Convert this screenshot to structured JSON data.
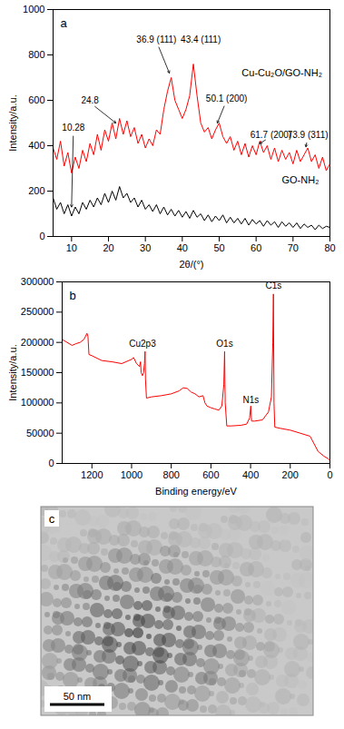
{
  "chart_data": [
    {
      "type": "line",
      "panel_label": "a",
      "x_label": "2θ/(°)",
      "y_label": "Intensity/a.u.",
      "x": [
        5,
        6,
        7,
        8,
        9,
        10,
        11,
        12,
        13,
        14,
        15,
        16,
        17,
        18,
        19,
        20,
        21,
        22,
        23,
        24,
        25,
        26,
        27,
        28,
        29,
        30,
        31,
        32,
        33,
        34,
        35,
        36,
        37,
        38,
        39,
        40,
        41,
        42,
        43,
        44,
        45,
        46,
        47,
        48,
        49,
        50,
        51,
        52,
        53,
        54,
        55,
        56,
        57,
        58,
        59,
        60,
        61,
        62,
        63,
        64,
        65,
        66,
        67,
        68,
        69,
        70,
        71,
        72,
        73,
        74,
        75,
        76,
        77,
        78,
        79,
        80
      ],
      "series": [
        {
          "name": "Cu-Cu₂O/GO-NH₂",
          "color": "#ff0000",
          "label_x": 67,
          "label_y": 720,
          "values": [
            390,
            340,
            420,
            310,
            370,
            280,
            350,
            300,
            380,
            330,
            410,
            360,
            450,
            380,
            470,
            420,
            500,
            430,
            520,
            450,
            510,
            440,
            480,
            410,
            450,
            390,
            430,
            400,
            470,
            450,
            560,
            640,
            700,
            600,
            560,
            520,
            560,
            620,
            760,
            620,
            500,
            460,
            480,
            430,
            470,
            500,
            440,
            410,
            440,
            380,
            420,
            360,
            410,
            350,
            400,
            360,
            420,
            370,
            400,
            340,
            390,
            330,
            380,
            340,
            370,
            320,
            380,
            330,
            360,
            390,
            330,
            360,
            300,
            350,
            290,
            320
          ]
        },
        {
          "name": "GO-NH₂",
          "color": "#000000",
          "label_x": 72,
          "label_y": 250,
          "values": [
            170,
            120,
            150,
            100,
            140,
            90,
            130,
            100,
            150,
            120,
            160,
            130,
            170,
            140,
            190,
            150,
            200,
            160,
            220,
            170,
            190,
            150,
            170,
            130,
            160,
            120,
            140,
            110,
            140,
            100,
            130,
            95,
            120,
            90,
            115,
            85,
            110,
            80,
            115,
            85,
            100,
            70,
            95,
            65,
            90,
            70,
            95,
            60,
            85,
            60,
            80,
            55,
            80,
            50,
            75,
            55,
            70,
            45,
            70,
            50,
            65,
            40,
            65,
            45,
            60,
            40,
            60,
            35,
            55,
            40,
            50,
            30,
            50,
            35,
            45,
            40
          ]
        }
      ],
      "xlim": [
        5,
        80
      ],
      "xticks": [
        10,
        20,
        30,
        40,
        50,
        60,
        70,
        80
      ],
      "ylim": [
        0,
        1000
      ],
      "yticks": [
        0,
        200,
        400,
        600,
        800,
        1000
      ],
      "annotations": [
        {
          "text": "10.28",
          "x": 10.5,
          "y": 470,
          "target": [
            10,
            130
          ]
        },
        {
          "text": "24.8",
          "x": 15,
          "y": 590,
          "target": [
            22,
            500
          ]
        },
        {
          "text": "36.9 (111)",
          "x": 33,
          "y": 860,
          "target": [
            36.5,
            720
          ]
        },
        {
          "text": "43.4 (111)",
          "x": 45,
          "y": 860
        },
        {
          "text": "50.1 (200)",
          "x": 52,
          "y": 600,
          "target": [
            49.5,
            500
          ]
        },
        {
          "text": "61.7 (200)",
          "x": 64,
          "y": 440,
          "target": [
            61,
            410
          ]
        },
        {
          "text": "73.9 (311)",
          "x": 74,
          "y": 440,
          "target": [
            73.5,
            395
          ]
        }
      ]
    },
    {
      "type": "line",
      "panel_label": "b",
      "x_label": "Binding energy/eV",
      "y_label": "Intensity/a.u.",
      "x": [
        1350,
        1300,
        1280,
        1260,
        1240,
        1225,
        1220,
        1215,
        1200,
        1150,
        1100,
        1050,
        1000,
        990,
        975,
        960,
        955,
        952,
        945,
        940,
        935,
        932,
        930,
        925,
        900,
        850,
        800,
        760,
        740,
        720,
        700,
        680,
        660,
        640,
        630,
        620,
        600,
        580,
        560,
        545,
        535,
        531,
        528,
        520,
        500,
        450,
        420,
        405,
        399,
        395,
        380,
        340,
        310,
        295,
        288,
        285,
        282,
        278,
        250,
        200,
        150,
        100,
        60,
        30,
        10,
        0
      ],
      "color": "#ff0000",
      "values": [
        205000,
        195000,
        198000,
        200000,
        205000,
        215000,
        210000,
        180000,
        178000,
        170000,
        168000,
        165000,
        172000,
        175000,
        165000,
        160000,
        168000,
        150000,
        145000,
        150000,
        165000,
        185000,
        140000,
        108000,
        110000,
        112000,
        115000,
        120000,
        125000,
        124000,
        118000,
        115000,
        110000,
        112000,
        100000,
        95000,
        92000,
        90000,
        88000,
        95000,
        130000,
        185000,
        100000,
        62000,
        62000,
        63000,
        65000,
        75000,
        95000,
        70000,
        70000,
        72000,
        85000,
        110000,
        200000,
        280000,
        100000,
        60000,
        58000,
        55000,
        50000,
        45000,
        20000,
        12000,
        8000,
        5000
      ],
      "xlim": [
        1350,
        0
      ],
      "xticks": [
        1200,
        1000,
        800,
        600,
        400,
        200,
        0
      ],
      "ylim": [
        0,
        300000
      ],
      "yticks": [
        0,
        50000,
        100000,
        150000,
        200000,
        250000,
        300000
      ],
      "annotations": [
        {
          "text": "Cu2p3",
          "x": 945,
          "y": 195000
        },
        {
          "text": "O1s",
          "x": 531,
          "y": 195000
        },
        {
          "text": "N1s",
          "x": 399,
          "y": 102000
        },
        {
          "text": "C1s",
          "x": 284,
          "y": 290000
        }
      ]
    },
    {
      "type": "image",
      "panel_label": "c",
      "scale_bar": "50 nm"
    }
  ]
}
